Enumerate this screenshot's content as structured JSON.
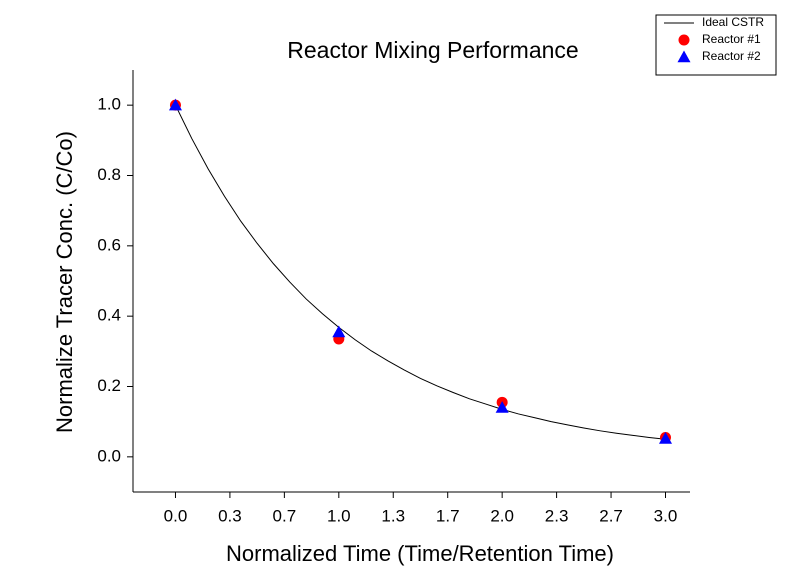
{
  "chart_data": {
    "type": "scatter",
    "title": "Reactor Mixing Performance",
    "x_label": "Normalized Time (Time/Retention Time)",
    "y_label": "Normalize Tracer Conc. (C/Co)",
    "xlim": [
      -0.26,
      3.15
    ],
    "ylim": [
      -0.1,
      1.1
    ],
    "xticks": [
      {
        "value": 0,
        "label": "0.0"
      },
      {
        "value": 0.3333,
        "label": "0.3"
      },
      {
        "value": 0.6667,
        "label": "0.7"
      },
      {
        "value": 1,
        "label": "1.0"
      },
      {
        "value": 1.3333,
        "label": "1.3"
      },
      {
        "value": 1.6667,
        "label": "1.7"
      },
      {
        "value": 2,
        "label": "2.0"
      },
      {
        "value": 2.3333,
        "label": "2.3"
      },
      {
        "value": 2.6667,
        "label": "2.7"
      },
      {
        "value": 3,
        "label": "3.0"
      }
    ],
    "yticks": [
      {
        "value": 0,
        "label": "0.0"
      },
      0.2,
      0.4,
      0.6,
      0.8,
      {
        "value": 1,
        "label": "1.0"
      }
    ],
    "legend": "upper right",
    "series": [
      {
        "name": "Ideal CSTR",
        "color": "#000000",
        "marker": "line",
        "x": [
          0,
          0.1,
          0.2,
          0.3,
          0.4,
          0.5,
          0.6,
          0.7,
          0.8,
          0.9,
          1.0,
          1.1,
          1.2,
          1.3,
          1.4,
          1.5,
          1.6,
          1.7,
          1.8,
          1.9,
          2.0,
          2.1,
          2.2,
          2.3,
          2.4,
          2.5,
          2.6,
          2.7,
          2.8,
          2.9,
          3.0
        ],
        "values": [
          1,
          0.905,
          0.819,
          0.741,
          0.67,
          0.607,
          0.549,
          0.497,
          0.449,
          0.407,
          0.368,
          0.333,
          0.301,
          0.273,
          0.247,
          0.223,
          0.202,
          0.183,
          0.165,
          0.15,
          0.135,
          0.122,
          0.111,
          0.1,
          0.091,
          0.082,
          0.074,
          0.067,
          0.061,
          0.055,
          0.05
        ]
      },
      {
        "name": "Reactor #1",
        "color": "#ff0000",
        "marker": "circle",
        "x": [
          0,
          1,
          2,
          3
        ],
        "values": [
          1.0,
          0.335,
          0.155,
          0.055
        ]
      },
      {
        "name": "Reactor #2",
        "color": "#0000ff",
        "marker": "triangle",
        "x": [
          0,
          1,
          2,
          3
        ],
        "values": [
          1.0,
          0.355,
          0.14,
          0.052
        ]
      }
    ]
  }
}
